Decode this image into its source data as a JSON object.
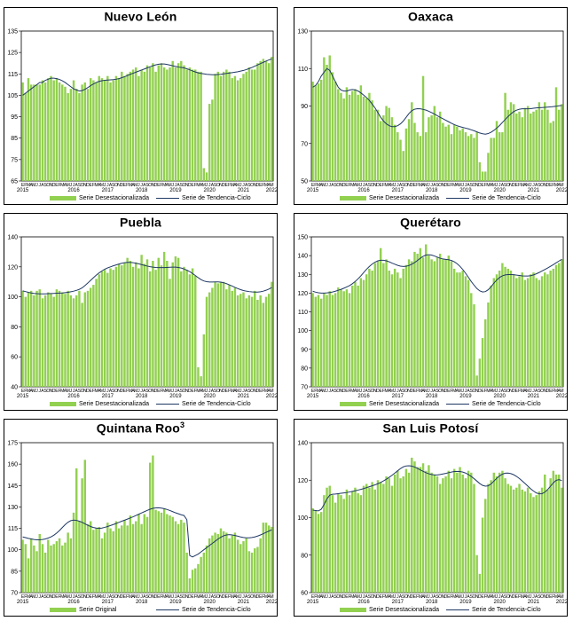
{
  "colors": {
    "bar": "#92d050",
    "trend": "#1f3864",
    "frame": "#000000"
  },
  "month_letters": [
    "E",
    "F",
    "M",
    "A",
    "M",
    "J",
    "J",
    "A",
    "S",
    "O",
    "N",
    "D"
  ],
  "chart_data": [
    {
      "id": "nuevo-leon",
      "type": "bar",
      "title": "Nuevo León",
      "title_sup": "",
      "ylim": [
        65,
        135
      ],
      "yticks": [
        65,
        75,
        85,
        95,
        105,
        115,
        125,
        135
      ],
      "years": [
        "2015",
        "2016",
        "2017",
        "2018",
        "2019",
        "2020",
        "2021",
        "2022"
      ],
      "legend": {
        "bar": "Serie Desestacionalizada",
        "line": "Serie de Tendencia-Ciclo"
      },
      "bars": [
        111,
        106,
        113,
        110,
        110,
        110,
        110,
        112,
        111,
        113,
        114,
        112,
        113,
        111,
        110,
        109,
        106,
        108,
        112,
        108,
        106,
        110,
        111,
        108,
        113,
        112,
        111,
        114,
        113,
        112,
        114,
        111,
        112,
        114,
        113,
        116,
        114,
        115,
        116,
        117,
        118,
        114,
        117,
        116,
        119,
        118,
        120,
        116,
        119,
        120,
        118,
        117,
        118,
        121,
        118,
        120,
        121,
        119,
        117,
        118,
        117,
        117,
        116,
        116,
        71,
        69,
        101,
        103,
        115,
        116,
        114,
        116,
        117,
        116,
        113,
        114,
        112,
        113,
        115,
        116,
        118,
        117,
        117,
        120,
        121,
        122,
        121,
        120,
        123
      ],
      "trend": [
        105,
        106,
        107,
        108,
        109,
        110,
        111,
        111,
        112,
        112.5,
        113,
        113,
        112.8,
        112.4,
        111.8,
        111,
        110,
        109,
        108,
        107.5,
        107,
        107.2,
        107.8,
        108.6,
        109.5,
        110.3,
        111,
        111.5,
        111.8,
        112,
        112.1,
        112.2,
        112.3,
        112.5,
        112.8,
        113.2,
        113.7,
        114.2,
        114.8,
        115.3,
        115.8,
        116.3,
        116.8,
        117.3,
        117.8,
        118.3,
        118.8,
        119.2,
        119.5,
        119.6,
        119.6,
        119.4,
        119.1,
        118.8,
        118.5,
        118.2,
        118,
        117.8,
        117.4,
        116.9,
        116.4,
        115.9,
        115.5,
        115.2,
        115,
        114.8,
        114.7,
        114.6,
        114.6,
        114.7,
        114.8,
        115,
        115.2,
        115.4,
        115.6,
        115.8,
        116,
        116.3,
        116.6,
        117,
        117.5,
        118,
        118.6,
        119.2,
        119.8,
        120.4,
        121,
        121.5,
        122
      ]
    },
    {
      "id": "oaxaca",
      "type": "bar",
      "title": "Oaxaca",
      "title_sup": "",
      "ylim": [
        50,
        130
      ],
      "yticks": [
        50,
        70,
        90,
        110,
        130
      ],
      "years": [
        "2015",
        "2016",
        "2017",
        "2018",
        "2019",
        "2020",
        "2021",
        "2022"
      ],
      "legend": {
        "bar": "Serie Desestacionalizada",
        "line": "Serie de Tendencia-Ciclo"
      },
      "bars": [
        103,
        101,
        102,
        104,
        116,
        112,
        117,
        108,
        103,
        99,
        97,
        94,
        100,
        96,
        98,
        99,
        96,
        101,
        95,
        94,
        97,
        93,
        88,
        88,
        82,
        85,
        90,
        89,
        84,
        80,
        76,
        72,
        66,
        78,
        83,
        92,
        81,
        76,
        74,
        106,
        76,
        84,
        85,
        90,
        84,
        87,
        81,
        79,
        80,
        75,
        80,
        79,
        77,
        78,
        76,
        74,
        75,
        73,
        76,
        60,
        55,
        55,
        65,
        73,
        73,
        82,
        76,
        76,
        97,
        88,
        92,
        91,
        86,
        87,
        84,
        89,
        90,
        86,
        87,
        88,
        92,
        88,
        92,
        88,
        81,
        82,
        100,
        88,
        91
      ],
      "trend": [
        100,
        101,
        103,
        106,
        108,
        110,
        109,
        106,
        103,
        100,
        98.5,
        98,
        98,
        98.5,
        98.8,
        98.6,
        98,
        97,
        95.8,
        94.5,
        93,
        91,
        89,
        86.5,
        84,
        82,
        80.5,
        79.5,
        79,
        79,
        79.5,
        80.5,
        82,
        84,
        86,
        87.5,
        88.3,
        88.6,
        88.5,
        88.2,
        87.8,
        87.2,
        86.5,
        85.7,
        84.8,
        84,
        83.2,
        82.4,
        81.6,
        80.8,
        80.1,
        79.5,
        79,
        78.6,
        78.2,
        77.8,
        77.3,
        76.8,
        76.2,
        75.6,
        75.2,
        75,
        75.3,
        76,
        77,
        78.2,
        79.6,
        81.2,
        82.8,
        84.4,
        85.8,
        87,
        87.8,
        88.3,
        88.5,
        88.5,
        88.5,
        88.6,
        88.8,
        89,
        89.1,
        89.2,
        89.3,
        89.4,
        89.5,
        89.7,
        89.9,
        90.1,
        90.3
      ]
    },
    {
      "id": "puebla",
      "type": "bar",
      "title": "Puebla",
      "title_sup": "",
      "ylim": [
        40,
        140
      ],
      "yticks": [
        40,
        60,
        80,
        100,
        120,
        140
      ],
      "years": [
        "2015",
        "2016",
        "2017",
        "2018",
        "2019",
        "2020",
        "2021",
        "2022"
      ],
      "legend": {
        "bar": "Serie Desestacionalizada",
        "line": "Serie de Tendencia-Ciclo"
      },
      "bars": [
        104,
        100,
        103,
        104,
        101,
        104,
        105,
        99,
        101,
        103,
        102,
        100,
        105,
        104,
        103,
        102,
        104,
        101,
        99,
        101,
        104,
        96,
        103,
        104,
        106,
        108,
        112,
        115,
        117,
        118,
        116,
        119,
        118,
        120,
        122,
        121,
        123,
        126,
        124,
        120,
        123,
        119,
        128,
        122,
        125,
        117,
        124,
        118,
        126,
        121,
        130,
        124,
        112,
        123,
        127,
        126,
        117,
        120,
        118,
        115,
        119,
        114,
        53,
        47,
        75,
        100,
        103,
        106,
        110,
        109,
        110,
        110,
        105,
        108,
        104,
        106,
        101,
        102,
        103,
        99,
        101,
        100,
        104,
        98,
        101,
        96,
        100,
        102,
        110
      ],
      "trend": [
        104,
        103.5,
        103,
        102.6,
        102.3,
        102.1,
        102,
        102,
        102,
        102.1,
        102.2,
        102.3,
        102.4,
        102.5,
        102.6,
        102.8,
        103,
        103.4,
        103.8,
        104.3,
        105,
        106,
        107.5,
        109.2,
        111,
        112.8,
        114.5,
        116,
        117.3,
        118.4,
        119.3,
        120,
        120.7,
        121.3,
        121.9,
        122.4,
        122.8,
        123,
        123,
        122.8,
        122.4,
        122,
        121.5,
        121,
        120.5,
        120.1,
        119.8,
        119.6,
        119.5,
        119.5,
        119.5,
        119.6,
        119.7,
        119.8,
        119.8,
        119.6,
        119.2,
        118.6,
        117.8,
        116.8,
        115.6,
        114.2,
        112.8,
        111.5,
        110.6,
        110.1,
        109.9,
        109.9,
        110,
        110,
        109.8,
        109.4,
        108.8,
        108,
        107.2,
        106.3,
        105.5,
        104.8,
        104.2,
        103.8,
        103.5,
        103.3,
        103.2,
        103.2,
        103.4,
        103.8,
        104.4,
        105.2,
        106.2
      ]
    },
    {
      "id": "queretaro",
      "type": "bar",
      "title": "Querétaro",
      "title_sup": "",
      "ylim": [
        70,
        150
      ],
      "yticks": [
        70,
        80,
        90,
        100,
        110,
        120,
        130,
        140,
        150
      ],
      "years": [
        "2015",
        "2016",
        "2017",
        "2018",
        "2019",
        "2020",
        "2021",
        "2022"
      ],
      "legend": {
        "bar": "Serie Desestacionalizada",
        "line": "Serie de Tendencia-Ciclo"
      },
      "bars": [
        120,
        118,
        119,
        117,
        120,
        119,
        121,
        119,
        120,
        123,
        122,
        121,
        122,
        120,
        124,
        126,
        124,
        128,
        127,
        130,
        133,
        132,
        136,
        137,
        144,
        136,
        138,
        132,
        130,
        133,
        131,
        128,
        133,
        135,
        138,
        137,
        142,
        141,
        144,
        139,
        146,
        140,
        138,
        137,
        139,
        141,
        138,
        138,
        140,
        137,
        133,
        131,
        131,
        132,
        129,
        127,
        120,
        114,
        76,
        85,
        96,
        106,
        115,
        124,
        128,
        130,
        132,
        136,
        134,
        133,
        132,
        130,
        128,
        129,
        131,
        127,
        128,
        130,
        131,
        128,
        127,
        129,
        131,
        130,
        132,
        133,
        135,
        136,
        138
      ],
      "trend": [
        121,
        120.5,
        120.2,
        120,
        120,
        120.1,
        120.3,
        120.6,
        121,
        121.5,
        122,
        122.6,
        123.3,
        124,
        125,
        126.2,
        127.6,
        129.2,
        131,
        132.7,
        134.2,
        135.5,
        136.5,
        137.2,
        137.5,
        137.5,
        137.2,
        136.7,
        136,
        135.4,
        134.8,
        134.4,
        134.2,
        134.3,
        134.7,
        135.4,
        136.3,
        137.4,
        138.6,
        139.6,
        140.3,
        140.5,
        140.3,
        139.8,
        139.2,
        138.6,
        138.2,
        138,
        137.8,
        137.4,
        136.7,
        135.7,
        134.3,
        132.6,
        130.6,
        128.4,
        126.2,
        124.2,
        122.4,
        121.2,
        120.6,
        120.8,
        121.8,
        123.4,
        125.3,
        127,
        128.3,
        129.2,
        129.7,
        129.9,
        129.9,
        129.8,
        129.6,
        129.4,
        129.2,
        129.1,
        129.1,
        129.3,
        129.7,
        130.3,
        131,
        131.8,
        132.6,
        133.4,
        134.3,
        135.2,
        136.2,
        137.1,
        138
      ]
    },
    {
      "id": "quintana-roo",
      "type": "bar",
      "title": "Quintana Roo",
      "title_sup": "3",
      "ylim": [
        70,
        175
      ],
      "yticks": [
        70,
        85,
        100,
        115,
        130,
        145,
        160,
        175
      ],
      "years": [
        "2015",
        "2016",
        "2017",
        "2018",
        "2019",
        "2020",
        "2021",
        "2022"
      ],
      "legend": {
        "bar": "Serie Original",
        "line": "Serie de Tendencia-Ciclo"
      },
      "bars": [
        107,
        104,
        94,
        108,
        103,
        99,
        111,
        104,
        98,
        107,
        103,
        104,
        106,
        108,
        103,
        105,
        112,
        108,
        126,
        157,
        120,
        150,
        163,
        118,
        120,
        114,
        115,
        116,
        108,
        112,
        119,
        115,
        113,
        120,
        115,
        117,
        121,
        117,
        124,
        118,
        120,
        125,
        118,
        125,
        123,
        161,
        166,
        128,
        127,
        126,
        129,
        125,
        124,
        123,
        120,
        118,
        121,
        119,
        98,
        80,
        86,
        87,
        90,
        95,
        98,
        103,
        108,
        110,
        112,
        111,
        115,
        113,
        112,
        108,
        110,
        112,
        107,
        104,
        106,
        108,
        99,
        98,
        101,
        102,
        108,
        119,
        119,
        117,
        116
      ],
      "trend": [
        109,
        108.5,
        108,
        107.6,
        107.2,
        107,
        107,
        107.2,
        107.6,
        108.2,
        109,
        110.2,
        111.7,
        113.5,
        115.6,
        117.6,
        119.3,
        120.4,
        120.8,
        120.6,
        120,
        119.2,
        118.2,
        117.2,
        116.3,
        115.6,
        115.2,
        115,
        115.2,
        115.7,
        116.3,
        117,
        117.7,
        118.4,
        119.2,
        120,
        120.7,
        121.5,
        122.3,
        123.1,
        124,
        124.9,
        125.8,
        126.7,
        127.6,
        128.4,
        129,
        129.3,
        129.4,
        129.2,
        128.8,
        128.2,
        127.5,
        126.7,
        125.9,
        125.2,
        124.5,
        124,
        121,
        96,
        95,
        96,
        97,
        98.5,
        100,
        101.5,
        103,
        104.5,
        106,
        107.5,
        108.8,
        109.8,
        110.4,
        110.6,
        110.4,
        110,
        109.5,
        109,
        108.6,
        108.4,
        108.4,
        108.6,
        109,
        109.6,
        110.4,
        111.3,
        112.2,
        113.1,
        114
      ]
    },
    {
      "id": "san-luis-potosi",
      "type": "bar",
      "title": "San Luis Potosí",
      "title_sup": "",
      "ylim": [
        60,
        140
      ],
      "yticks": [
        60,
        80,
        100,
        120,
        140
      ],
      "years": [
        "2015",
        "2016",
        "2017",
        "2018",
        "2019",
        "2020",
        "2021",
        "2022"
      ],
      "legend": {
        "bar": "Serie Desestacionalizada",
        "line": "Serie de Tendencia-Ciclo"
      },
      "bars": [
        105,
        104,
        102,
        103,
        112,
        116,
        117,
        112,
        108,
        113,
        112,
        110,
        115,
        112,
        114,
        116,
        113,
        112,
        117,
        118,
        116,
        119,
        115,
        120,
        119,
        118,
        122,
        121,
        117,
        123,
        125,
        121,
        122,
        126,
        124,
        132,
        130,
        127,
        127,
        129,
        125,
        128,
        124,
        123,
        122,
        118,
        121,
        122,
        125,
        121,
        126,
        124,
        127,
        123,
        121,
        125,
        124,
        118,
        80,
        70,
        100,
        110,
        118,
        120,
        124,
        122,
        124,
        125,
        121,
        118,
        117,
        115,
        116,
        118,
        115,
        114,
        116,
        113,
        111,
        112,
        114,
        116,
        123,
        115,
        121,
        125,
        123,
        123,
        116
      ],
      "trend": [
        104,
        103.8,
        103.6,
        104.5,
        107,
        110,
        112,
        112.5,
        112.6,
        112.8,
        113,
        113.2,
        113.4,
        113.7,
        114,
        114.3,
        114.7,
        115.1,
        115.5,
        116,
        116.5,
        117,
        117.5,
        118.1,
        118.8,
        119.6,
        120.5,
        121.5,
        122.6,
        123.8,
        125,
        126.2,
        127.1,
        127.6,
        127.7,
        127.5,
        127,
        126.3,
        125.5,
        124.7,
        124,
        123.4,
        123,
        122.8,
        122.8,
        123,
        123.3,
        123.6,
        124,
        124.3,
        124.6,
        124.7,
        124.6,
        124.3,
        123.8,
        123,
        122,
        120.8,
        119.5,
        118.2,
        117.2,
        116.8,
        117,
        118,
        119.5,
        121,
        122.3,
        123.2,
        123.7,
        123.8,
        123.5,
        122.9,
        122,
        120.9,
        119.6,
        118.2,
        116.8,
        115.4,
        114.2,
        113.2,
        112.7,
        112.8,
        113.6,
        115,
        116.8,
        118.6,
        119.9,
        120.3,
        119.8
      ]
    }
  ]
}
